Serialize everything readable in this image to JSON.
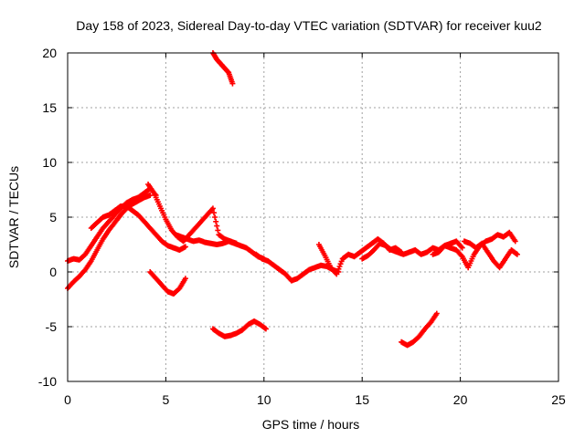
{
  "chart_data": {
    "type": "scatter",
    "title": "Day 158 of 2023, Sidereal Day-to-day VTEC variation (SDTVAR) for receiver kuu2",
    "xlabel": "GPS time / hours",
    "ylabel": "SDTVAR / TECUs",
    "xlim": [
      0,
      25
    ],
    "ylim": [
      -10,
      20
    ],
    "xticks": [
      0,
      5,
      10,
      15,
      20,
      25
    ],
    "yticks": [
      -10,
      -5,
      0,
      5,
      10,
      15,
      20
    ],
    "grid": true,
    "marker": "+",
    "color": "#ff0000",
    "series": [
      {
        "name": "arc-1",
        "x": [
          0.0,
          0.3,
          0.6,
          0.9,
          1.2,
          1.5,
          1.8,
          2.1,
          2.4,
          2.7,
          3.0,
          3.3,
          3.6,
          3.9,
          4.2
        ],
        "y": [
          -1.5,
          -0.9,
          -0.4,
          0.2,
          1.0,
          2.0,
          3.0,
          3.8,
          4.5,
          5.2,
          5.8,
          6.2,
          6.5,
          6.8,
          7.0
        ]
      },
      {
        "name": "arc-2",
        "x": [
          0.0,
          0.3,
          0.6,
          0.9,
          1.2,
          1.5,
          1.8,
          2.1,
          2.4,
          2.7,
          3.0,
          3.3,
          3.6,
          3.9,
          4.2,
          4.5
        ],
        "y": [
          1.0,
          1.2,
          1.1,
          1.6,
          2.4,
          3.2,
          4.0,
          4.6,
          5.2,
          5.8,
          6.3,
          6.6,
          6.8,
          7.2,
          7.6,
          7.0
        ]
      },
      {
        "name": "arc-3",
        "x": [
          1.2,
          1.5,
          1.8,
          2.1,
          2.4,
          2.7,
          3.0,
          3.3,
          3.6,
          3.9,
          4.2,
          4.5,
          4.8,
          5.1,
          5.4,
          5.7,
          6.0
        ],
        "y": [
          4.0,
          4.5,
          5.0,
          5.2,
          5.6,
          6.0,
          6.0,
          5.6,
          5.2,
          4.6,
          4.0,
          3.4,
          2.8,
          2.4,
          2.2,
          2.0,
          2.3
        ]
      },
      {
        "name": "arc-4",
        "x": [
          4.1,
          4.4,
          4.7,
          5.0,
          5.3,
          5.6,
          5.9,
          6.2,
          6.5,
          6.8,
          7.1,
          7.4,
          7.7,
          8.0,
          8.3,
          8.6
        ],
        "y": [
          8.0,
          7.2,
          6.0,
          4.8,
          3.8,
          3.2,
          2.8,
          3.4,
          4.0,
          4.6,
          5.2,
          5.8,
          3.4,
          3.0,
          2.8,
          2.6
        ]
      },
      {
        "name": "arc-5",
        "x": [
          5.5,
          5.8,
          6.1,
          6.4,
          6.7,
          7.0,
          7.3,
          7.6,
          7.9,
          8.2,
          8.5,
          8.8,
          9.1,
          9.4,
          9.7,
          10.0
        ],
        "y": [
          3.4,
          3.2,
          3.0,
          2.8,
          2.9,
          2.7,
          2.6,
          2.5,
          2.6,
          2.8,
          2.6,
          2.4,
          2.2,
          1.8,
          1.4,
          1.2
        ]
      },
      {
        "name": "arc-6",
        "x": [
          9.6,
          9.9,
          10.2,
          10.5,
          10.8,
          11.1,
          11.4,
          11.7,
          12.0,
          12.3,
          12.6,
          12.9,
          13.2,
          13.5,
          13.8
        ],
        "y": [
          1.6,
          1.2,
          1.0,
          0.6,
          0.2,
          -0.2,
          -0.8,
          -0.6,
          -0.2,
          0.2,
          0.4,
          0.6,
          0.5,
          0.2,
          0.0
        ]
      },
      {
        "name": "arc-7",
        "x": [
          12.8,
          13.1,
          13.4,
          13.7,
          14.0,
          14.3,
          14.6,
          14.9,
          15.2,
          15.5,
          15.8,
          16.1,
          16.4,
          16.7,
          17.0
        ],
        "y": [
          2.5,
          1.5,
          0.4,
          -0.2,
          1.2,
          1.6,
          1.4,
          1.8,
          2.2,
          2.6,
          3.0,
          2.6,
          2.0,
          2.2,
          1.8
        ]
      },
      {
        "name": "arc-8",
        "x": [
          15.0,
          15.3,
          15.6,
          15.9,
          16.2,
          16.5,
          16.8,
          17.1,
          17.4,
          17.7,
          18.0,
          18.3,
          18.6,
          18.9,
          19.2,
          19.5,
          19.8,
          20.1
        ],
        "y": [
          1.2,
          1.5,
          2.0,
          2.6,
          2.4,
          2.0,
          1.8,
          1.6,
          1.8,
          2.0,
          1.6,
          1.8,
          2.2,
          2.0,
          2.4,
          2.6,
          2.8,
          2.2
        ]
      },
      {
        "name": "arc-9",
        "x": [
          18.6,
          18.9,
          19.2,
          19.5,
          19.8,
          20.1,
          20.4,
          20.7,
          21.0,
          21.3,
          21.6,
          21.9,
          22.2,
          22.5,
          22.8
        ],
        "y": [
          1.6,
          1.8,
          2.4,
          2.2,
          2.0,
          1.4,
          0.4,
          1.6,
          2.4,
          2.8,
          3.0,
          3.4,
          3.2,
          3.6,
          2.8
        ]
      },
      {
        "name": "arc-10",
        "x": [
          20.2,
          20.5,
          20.8,
          21.1,
          21.4,
          21.7,
          22.0,
          22.3,
          22.6,
          22.9
        ],
        "y": [
          2.8,
          2.6,
          2.2,
          2.6,
          1.8,
          1.0,
          0.4,
          1.2,
          2.0,
          1.6
        ]
      },
      {
        "name": "arc-11",
        "x": [
          7.4,
          7.6,
          7.8,
          8.0,
          8.2,
          8.4
        ],
        "y": [
          20.0,
          19.4,
          19.0,
          18.6,
          18.2,
          17.2
        ]
      },
      {
        "name": "arc-12",
        "x": [
          4.2,
          4.5,
          4.8,
          5.1,
          5.4,
          5.7,
          6.0
        ],
        "y": [
          0.0,
          -0.6,
          -1.2,
          -1.8,
          -2.0,
          -1.5,
          -0.6
        ]
      },
      {
        "name": "arc-13",
        "x": [
          7.4,
          7.7,
          8.0,
          8.3,
          8.6,
          8.9,
          9.2,
          9.5,
          9.8,
          10.1
        ],
        "y": [
          -5.2,
          -5.6,
          -5.9,
          -5.8,
          -5.6,
          -5.3,
          -4.8,
          -4.5,
          -4.8,
          -5.2
        ]
      },
      {
        "name": "arc-14",
        "x": [
          17.0,
          17.3,
          17.6,
          17.9,
          18.2,
          18.5,
          18.8
        ],
        "y": [
          -6.4,
          -6.7,
          -6.4,
          -5.9,
          -5.2,
          -4.6,
          -3.8
        ]
      }
    ]
  }
}
